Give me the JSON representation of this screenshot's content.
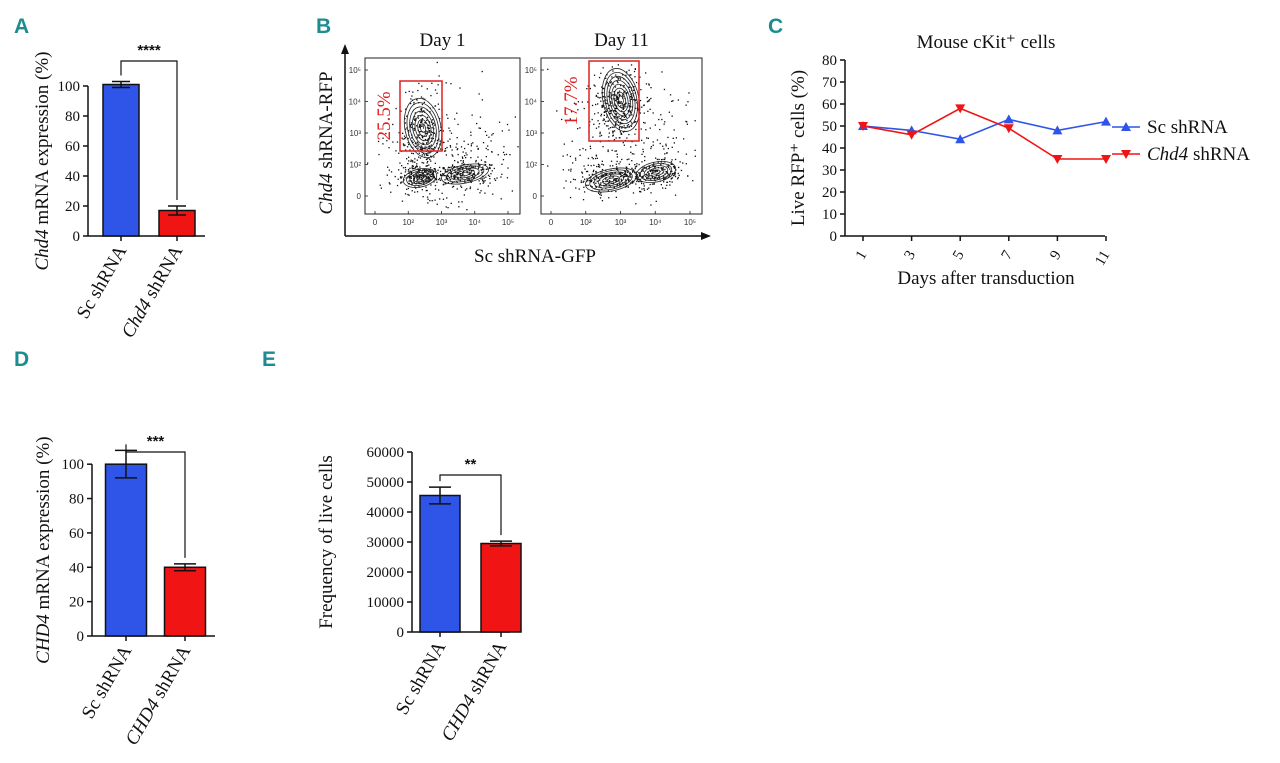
{
  "panels": [
    "A",
    "B",
    "C",
    "D",
    "E"
  ],
  "colors": {
    "blue": "#2f55e8",
    "red": "#f01414",
    "teal": "#1d8c91",
    "gate": "#e02020"
  },
  "chart_data": [
    {
      "id": "A",
      "type": "bar",
      "categories": [
        "Sc shRNA",
        "Chd4 shRNA"
      ],
      "category_parts": [
        [
          {
            "t": "Sc shRNA",
            "i": false
          }
        ],
        [
          {
            "t": "Chd4",
            "i": true
          },
          {
            "t": " shRNA",
            "i": false
          }
        ]
      ],
      "values": [
        101,
        17
      ],
      "errors": [
        2,
        3
      ],
      "ylabel_parts": [
        {
          "t": "Chd4",
          "i": true
        },
        {
          "t": " mRNA expression (%)",
          "i": false
        }
      ],
      "ylim": [
        0,
        120
      ],
      "yticks": [
        0,
        20,
        40,
        60,
        80,
        100
      ],
      "significance": "****"
    },
    {
      "id": "B",
      "type": "flow-contour",
      "titles": [
        "Day 1",
        "Day 11"
      ],
      "gates": [
        "25.5%",
        "17.7%"
      ],
      "xlabel": "Sc shRNA-GFP",
      "ylabel_parts": [
        {
          "t": "Chd4",
          "i": true
        },
        {
          "t": " shRNA-RFP",
          "i": false
        }
      ],
      "yticks": [
        "10⁵",
        "10⁴",
        "10³",
        "10²",
        "0"
      ],
      "xticks": [
        "0",
        "10²",
        "10³",
        "10⁴",
        "10⁵"
      ]
    },
    {
      "id": "C",
      "type": "line",
      "title": "Mouse cKit⁺ cells",
      "x": [
        1,
        3,
        5,
        7,
        9,
        11
      ],
      "series": [
        {
          "name": "Sc shRNA",
          "name_parts": [
            {
              "t": "Sc shRNA",
              "i": false
            }
          ],
          "values": [
            50,
            48,
            44,
            53,
            48,
            52
          ],
          "color": "#2f55e8",
          "marker": "triangle-up"
        },
        {
          "name": "Chd4 shRNA",
          "name_parts": [
            {
              "t": "Chd4",
              "i": true
            },
            {
              "t": " shRNA",
              "i": false
            }
          ],
          "values": [
            50,
            46,
            58,
            49,
            35,
            35
          ],
          "color": "#f01414",
          "marker": "triangle-down"
        }
      ],
      "xlabel": "Days after transduction",
      "ylabel": "Live RFP⁺ cells (%)",
      "ylim": [
        0,
        80
      ],
      "yticks": [
        0,
        10,
        20,
        30,
        40,
        50,
        60,
        70,
        80
      ],
      "legend": "right"
    },
    {
      "id": "D",
      "type": "bar",
      "categories": [
        "Sc shRNA",
        "CHD4 shRNA"
      ],
      "category_parts": [
        [
          {
            "t": "Sc shRNA",
            "i": false
          }
        ],
        [
          {
            "t": "CHD4",
            "i": true
          },
          {
            "t": " shRNA",
            "i": false
          }
        ]
      ],
      "values": [
        100,
        40
      ],
      "errors": [
        8,
        2
      ],
      "ylabel_parts": [
        {
          "t": "CHD4",
          "i": true
        },
        {
          "t": " mRNA expression (%)",
          "i": false
        }
      ],
      "ylim": [
        0,
        110
      ],
      "yticks": [
        0,
        20,
        40,
        60,
        80,
        100
      ],
      "significance": "***"
    },
    {
      "id": "E",
      "type": "bar",
      "categories": [
        "Sc shRNA",
        "CHD4 shRNA"
      ],
      "category_parts": [
        [
          {
            "t": "Sc shRNA",
            "i": false
          }
        ],
        [
          {
            "t": "CHD4",
            "i": true
          },
          {
            "t": " shRNA",
            "i": false
          }
        ]
      ],
      "values": [
        45500,
        29500
      ],
      "errors": [
        2800,
        800
      ],
      "ylabel_parts": [
        {
          "t": "Frequency of live cells",
          "i": false
        }
      ],
      "ylim": [
        0,
        60000
      ],
      "yticks": [
        0,
        10000,
        20000,
        30000,
        40000,
        50000,
        60000
      ],
      "significance": "**"
    }
  ]
}
